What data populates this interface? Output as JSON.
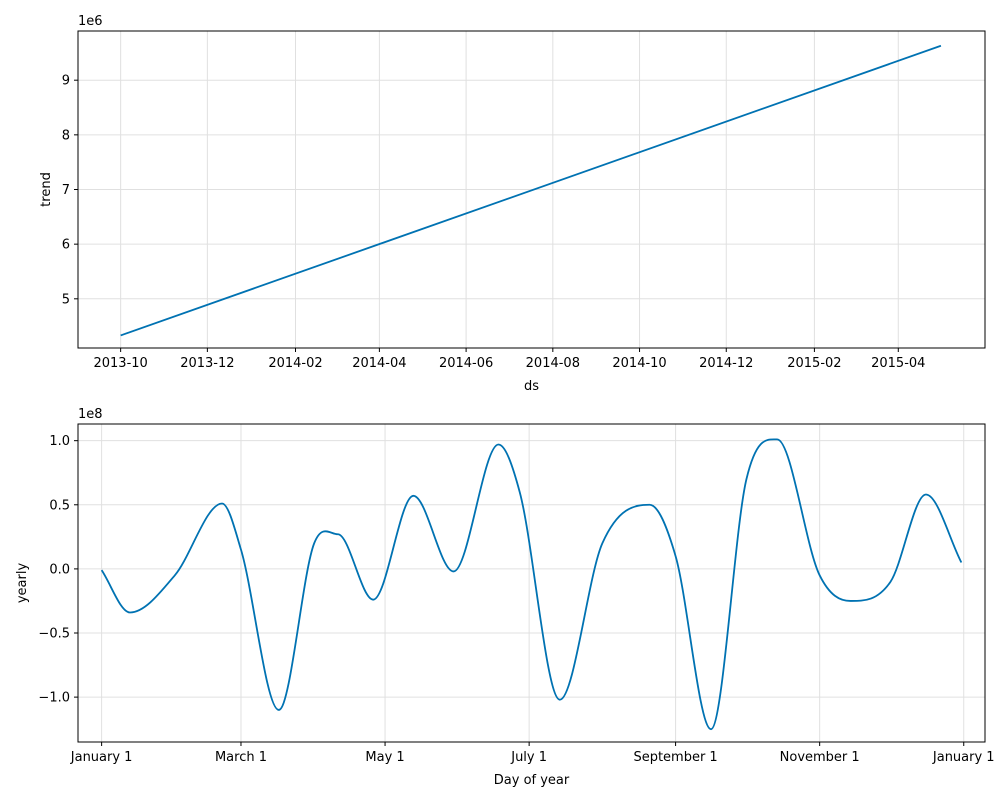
{
  "colors": {
    "line": "#0072B2",
    "grid": "#e0e0e0"
  },
  "chart_data": [
    {
      "type": "line",
      "xlabel": "ds",
      "ylabel": "trend",
      "y_multiplier_label": "1e6",
      "x_axis_kind": "date",
      "xlim": [
        "2013-09-01",
        "2015-06-01"
      ],
      "ylim": [
        4.1,
        9.9
      ],
      "x_ticks": [
        {
          "value": "2013-10-01",
          "label": "2013-10"
        },
        {
          "value": "2013-12-01",
          "label": "2013-12"
        },
        {
          "value": "2014-02-01",
          "label": "2014-02"
        },
        {
          "value": "2014-04-01",
          "label": "2014-04"
        },
        {
          "value": "2014-06-01",
          "label": "2014-06"
        },
        {
          "value": "2014-08-01",
          "label": "2014-08"
        },
        {
          "value": "2014-10-01",
          "label": "2014-10"
        },
        {
          "value": "2014-12-01",
          "label": "2014-12"
        },
        {
          "value": "2015-02-01",
          "label": "2015-02"
        },
        {
          "value": "2015-04-01",
          "label": "2015-04"
        }
      ],
      "y_ticks": [
        {
          "value": 5,
          "label": "5"
        },
        {
          "value": 6,
          "label": "6"
        },
        {
          "value": 7,
          "label": "7"
        },
        {
          "value": 8,
          "label": "8"
        },
        {
          "value": 9,
          "label": "9"
        }
      ],
      "grid": true,
      "series": [
        {
          "x": [
            "2013-10-01",
            "2015-05-01"
          ],
          "y": [
            4.33,
            9.63
          ]
        }
      ]
    },
    {
      "type": "line",
      "xlabel": "Day of year",
      "ylabel": "yearly",
      "y_multiplier_label": "1e8",
      "x_axis_kind": "date",
      "xlim": [
        "2016-12-22",
        "2018-01-10"
      ],
      "ylim": [
        -1.35,
        1.13
      ],
      "x_ticks": [
        {
          "value": "2017-01-01",
          "label": "January 1"
        },
        {
          "value": "2017-03-01",
          "label": "March 1"
        },
        {
          "value": "2017-05-01",
          "label": "May 1"
        },
        {
          "value": "2017-07-01",
          "label": "July 1"
        },
        {
          "value": "2017-09-01",
          "label": "September 1"
        },
        {
          "value": "2017-11-01",
          "label": "November 1"
        },
        {
          "value": "2018-01-01",
          "label": "January 1"
        }
      ],
      "y_ticks": [
        {
          "value": -1.0,
          "label": "−1.0"
        },
        {
          "value": -0.5,
          "label": "−0.5"
        },
        {
          "value": 0.0,
          "label": "0.0"
        },
        {
          "value": 0.5,
          "label": "0.5"
        },
        {
          "value": 1.0,
          "label": "1.0"
        }
      ],
      "grid": true,
      "series": [
        {
          "x": [
            "2017-01-01",
            "2017-01-13",
            "2017-02-01",
            "2017-02-21",
            "2017-03-01",
            "2017-03-17",
            "2017-04-01",
            "2017-04-11",
            "2017-04-26",
            "2017-05-13",
            "2017-05-30",
            "2017-06-18",
            "2017-06-27",
            "2017-07-14",
            "2017-08-01",
            "2017-08-21",
            "2017-09-01",
            "2017-09-16",
            "2017-10-01",
            "2017-10-14",
            "2017-11-01",
            "2017-11-14",
            "2017-12-01",
            "2017-12-16",
            "2017-12-31"
          ],
          "y": [
            -0.01,
            -0.34,
            -0.05,
            0.51,
            0.15,
            -1.1,
            0.2,
            0.27,
            -0.24,
            0.57,
            -0.02,
            0.97,
            0.6,
            -1.02,
            0.2,
            0.5,
            0.1,
            -1.25,
            0.7,
            1.01,
            -0.05,
            -0.25,
            -0.1,
            0.58,
            0.05
          ]
        }
      ]
    }
  ]
}
